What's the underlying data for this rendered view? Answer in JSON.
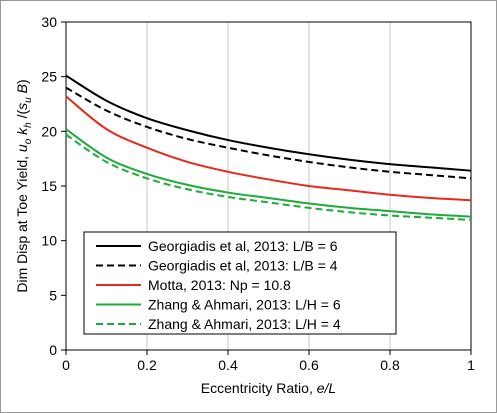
{
  "chart_data": {
    "type": "line",
    "title": "",
    "xlabel": "Eccentricity Ratio, e/L",
    "ylabel": "Dim Disp at Toe Yield, uo kh /(su B)",
    "xlim": [
      0,
      1
    ],
    "ylim": [
      0,
      30
    ],
    "xticks": [
      0,
      0.2,
      0.4,
      0.6,
      0.8,
      1
    ],
    "yticks": [
      0,
      5,
      10,
      15,
      20,
      25,
      30
    ],
    "xtick_labels": [
      "0",
      "0.2",
      "0.4",
      "0.6",
      "0.8",
      "1"
    ],
    "ytick_labels": [
      "0",
      "5",
      "10",
      "15",
      "20",
      "25",
      "30"
    ],
    "grid": "vertical",
    "legend_position": "bottom-left",
    "x": [
      0,
      0.1,
      0.2,
      0.3,
      0.4,
      0.5,
      0.6,
      0.7,
      0.8,
      0.9,
      1.0
    ],
    "series": [
      {
        "name": "Georgiadis et al, 2013: L/B = 6",
        "color": "#000000",
        "dash": "solid",
        "values": [
          25.1,
          22.8,
          21.2,
          20.1,
          19.2,
          18.5,
          17.9,
          17.4,
          17.0,
          16.7,
          16.4
        ]
      },
      {
        "name": "Georgiadis et al, 2013: L/B = 4",
        "color": "#000000",
        "dash": "dashed",
        "values": [
          24.0,
          21.9,
          20.4,
          19.3,
          18.5,
          17.8,
          17.2,
          16.7,
          16.3,
          16.0,
          15.7
        ]
      },
      {
        "name": "Motta, 2013: Np = 10.8",
        "color": "#e8291c",
        "dash": "solid",
        "values": [
          23.2,
          20.2,
          18.5,
          17.2,
          16.3,
          15.6,
          15.0,
          14.6,
          14.2,
          13.9,
          13.7
        ]
      },
      {
        "name": "Zhang & Ahmari, 2013: L/H = 6",
        "color": "#1fab3a",
        "dash": "solid",
        "values": [
          20.2,
          17.6,
          16.1,
          15.1,
          14.4,
          13.9,
          13.4,
          13.0,
          12.7,
          12.4,
          12.2
        ]
      },
      {
        "name": "Zhang & Ahmari, 2013: L/H = 4",
        "color": "#1fab3a",
        "dash": "dashed",
        "values": [
          19.7,
          17.2,
          15.7,
          14.7,
          14.0,
          13.5,
          13.0,
          12.6,
          12.3,
          12.1,
          11.9
        ]
      }
    ]
  }
}
